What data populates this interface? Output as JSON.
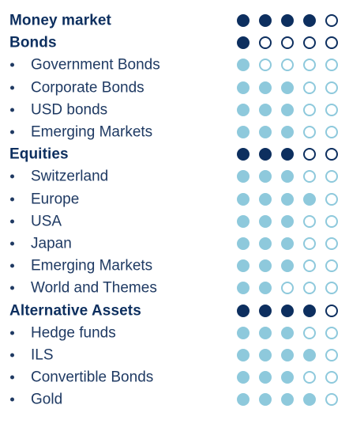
{
  "colors": {
    "category_dot": "#0d2f5f",
    "subcategory_dot": "#8ec9dc",
    "category_text": "#0d2f5f",
    "subcategory_text": "#1f3a63"
  },
  "bullet_glyph": "•",
  "max_rating": 5,
  "rows": [
    {
      "label": "Money market",
      "type": "category",
      "rating": 4
    },
    {
      "label": "Bonds",
      "type": "category",
      "rating": 1
    },
    {
      "label": "Government Bonds",
      "type": "subcategory",
      "rating": 1
    },
    {
      "label": "Corporate Bonds",
      "type": "subcategory",
      "rating": 3
    },
    {
      "label": "USD bonds",
      "type": "subcategory",
      "rating": 3
    },
    {
      "label": "Emerging Markets",
      "type": "subcategory",
      "rating": 3
    },
    {
      "label": "Equities",
      "type": "category",
      "rating": 3
    },
    {
      "label": "Switzerland",
      "type": "subcategory",
      "rating": 3
    },
    {
      "label": "Europe",
      "type": "subcategory",
      "rating": 4
    },
    {
      "label": "USA",
      "type": "subcategory",
      "rating": 3
    },
    {
      "label": "Japan",
      "type": "subcategory",
      "rating": 3
    },
    {
      "label": "Emerging Markets",
      "type": "subcategory",
      "rating": 3
    },
    {
      "label": "World and Themes",
      "type": "subcategory",
      "rating": 2
    },
    {
      "label": "Alternative Assets",
      "type": "category",
      "rating": 4
    },
    {
      "label": "Hedge funds",
      "type": "subcategory",
      "rating": 3
    },
    {
      "label": "ILS",
      "type": "subcategory",
      "rating": 4
    },
    {
      "label": "Convertible Bonds",
      "type": "subcategory",
      "rating": 3
    },
    {
      "label": "Gold",
      "type": "subcategory",
      "rating": 4
    }
  ]
}
